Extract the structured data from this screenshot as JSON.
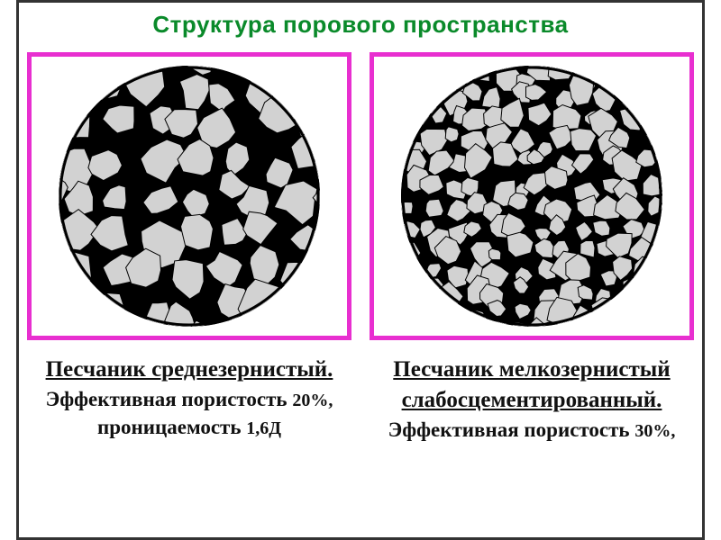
{
  "title": "Структура порового пространства",
  "title_color": "#0a8a2a",
  "frame_border_color": "#e82fd0",
  "circle_grain_fill": "#d2d2d2",
  "circle_bg": "#000000",
  "panel_left": {
    "type": "microstructure",
    "grain_size": "medium",
    "caption_title": "Песчаник среднезернистый.",
    "caption_body_1": "Эффективная пористость ",
    "porosity_percent": "20%,",
    "caption_body_2": "проницаемость ",
    "permeability": "1,6Д"
  },
  "panel_right": {
    "type": "microstructure",
    "grain_size": "fine",
    "caption_title_line1": "Песчаник мелкозернистый",
    "caption_title_line2": "слабосцементированный.",
    "caption_body_1": " Эффективная пористость ",
    "porosity_percent": "30%,"
  },
  "style": {
    "title_fontsize": 26,
    "caption_title_fontsize": 25,
    "caption_body_fontsize": 23,
    "frame_border_width": 5,
    "circle_diameter": 290
  }
}
